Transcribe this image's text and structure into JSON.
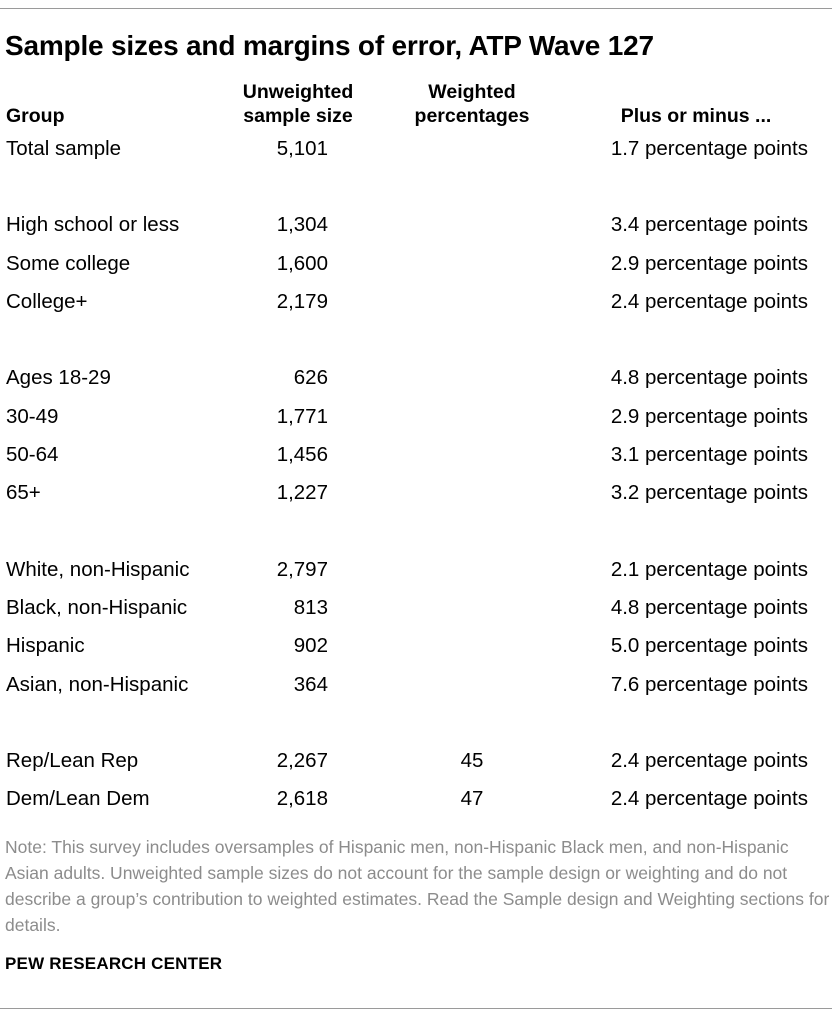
{
  "title": "Sample sizes and margins of error, ATP Wave 127",
  "headers": {
    "group": "Group",
    "unweighted": "Unweighted sample size",
    "weighted": "Weighted percentages",
    "moe": "Plus or minus ..."
  },
  "rows": [
    {
      "group": "Total sample",
      "unweighted": "5,101",
      "weighted": "",
      "moe": "1.7 percentage points"
    },
    {
      "group": "High school or less",
      "unweighted": "1,304",
      "weighted": "",
      "moe": "3.4 percentage points"
    },
    {
      "group": "Some college",
      "unweighted": "1,600",
      "weighted": "",
      "moe": "2.9 percentage points"
    },
    {
      "group": "College+",
      "unweighted": "2,179",
      "weighted": "",
      "moe": "2.4 percentage points"
    },
    {
      "group": "Ages 18-29",
      "unweighted": "626",
      "weighted": "",
      "moe": "4.8 percentage points"
    },
    {
      "group": "30-49",
      "unweighted": "1,771",
      "weighted": "",
      "moe": "2.9 percentage points"
    },
    {
      "group": "50-64",
      "unweighted": "1,456",
      "weighted": "",
      "moe": "3.1 percentage points"
    },
    {
      "group": "65+",
      "unweighted": "1,227",
      "weighted": "",
      "moe": "3.2 percentage points"
    },
    {
      "group": "White, non-Hispanic",
      "unweighted": "2,797",
      "weighted": "",
      "moe": "2.1 percentage points"
    },
    {
      "group": "Black, non-Hispanic",
      "unweighted": "813",
      "weighted": "",
      "moe": "4.8 percentage points"
    },
    {
      "group": "Hispanic",
      "unweighted": "902",
      "weighted": "",
      "moe": "5.0 percentage points"
    },
    {
      "group": "Asian, non-Hispanic",
      "unweighted": "364",
      "weighted": "",
      "moe": "7.6 percentage points"
    },
    {
      "group": "Rep/Lean Rep",
      "unweighted": "2,267",
      "weighted": "45",
      "moe": "2.4 percentage points"
    },
    {
      "group": "Dem/Lean Dem",
      "unweighted": "2,618",
      "weighted": "47",
      "moe": "2.4 percentage points"
    }
  ],
  "note": "Note: This survey includes oversamples of Hispanic men, non-Hispanic Black men, and non-Hispanic Asian adults. Unweighted sample sizes do not account for the sample design or weighting and do not describe a group’s contribution to weighted estimates. Read the Sample design and Weighting sections for details.",
  "source": "PEW RESEARCH CENTER"
}
